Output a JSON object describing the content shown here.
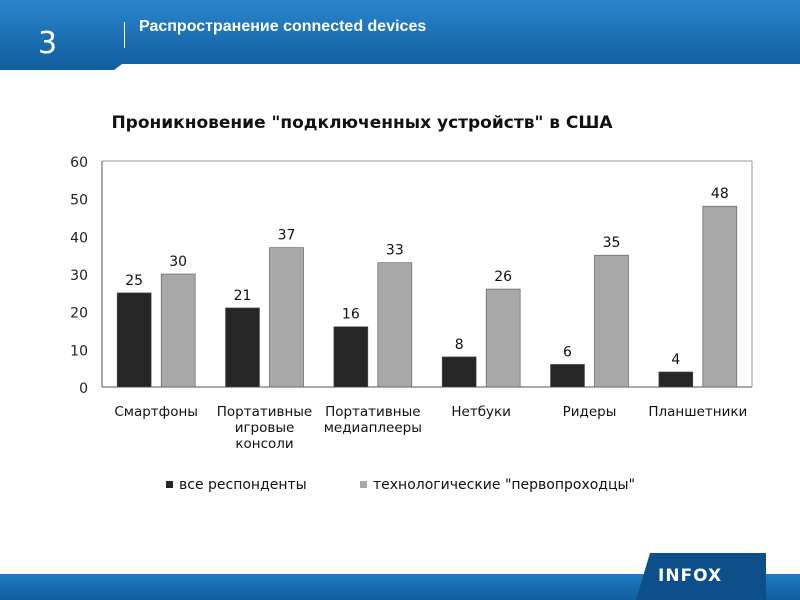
{
  "slide": {
    "number": "3",
    "title": "Распространение connected devices"
  },
  "logo": {
    "text": "INFOX"
  },
  "colors": {
    "header_blue": "#1b74be",
    "header_blue_dark": "#0f5d9e",
    "series_dark": "#262626",
    "series_light": "#a8a8a8"
  },
  "chart_data": {
    "type": "bar",
    "title": "Проникновение \"подключенных устройств\" в США",
    "xlabel": "",
    "ylabel": "",
    "ylim": [
      0,
      60
    ],
    "yticks": [
      0,
      10,
      20,
      30,
      40,
      50,
      60
    ],
    "categories": [
      [
        "Смартфоны"
      ],
      [
        "Портативные",
        "игровые",
        "консоли"
      ],
      [
        "Портативные",
        "медиаплееры"
      ],
      [
        "Нетбуки"
      ],
      [
        "Ридеры"
      ],
      [
        "Планшетники"
      ]
    ],
    "series": [
      {
        "name": "все респонденты",
        "color": "#262626",
        "values": [
          25,
          21,
          16,
          8,
          6,
          4
        ]
      },
      {
        "name": "технологические \"первопроходцы\"",
        "color": "#a8a8a8",
        "values": [
          30,
          37,
          33,
          26,
          35,
          48
        ]
      }
    ],
    "grid": false,
    "legend": "bottom"
  }
}
